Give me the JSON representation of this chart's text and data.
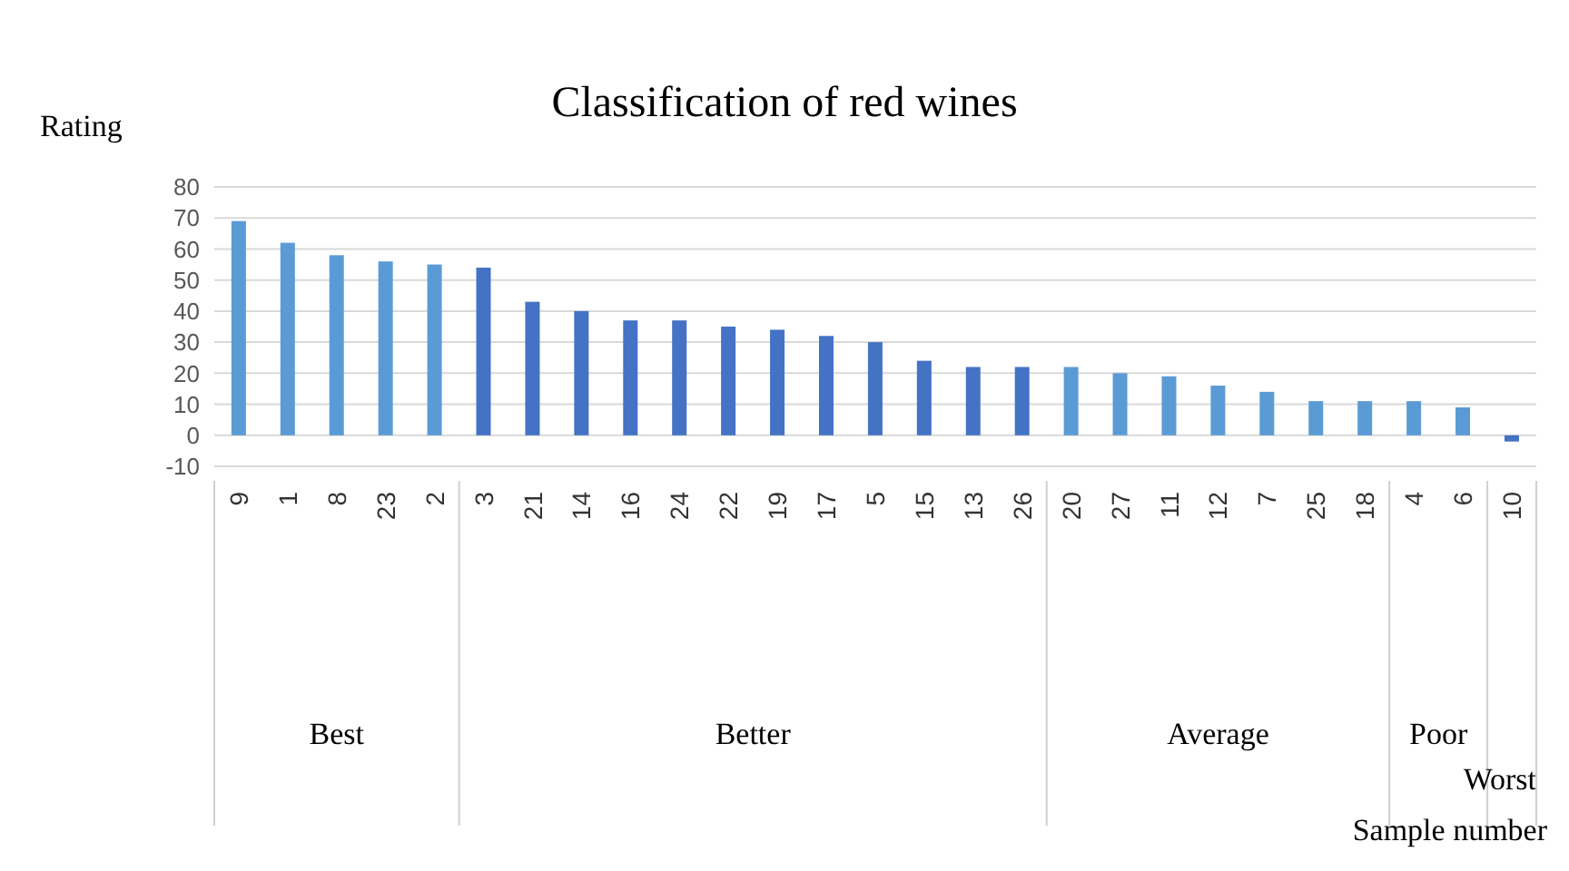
{
  "chart_data": {
    "type": "bar",
    "title": "Classification of red wines",
    "ylabel": "Rating",
    "categories": [
      "9",
      "1",
      "8",
      "23",
      "2",
      "3",
      "21",
      "14",
      "16",
      "24",
      "22",
      "19",
      "17",
      "5",
      "15",
      "13",
      "26",
      "20",
      "27",
      "11",
      "12",
      "7",
      "25",
      "18",
      "4",
      "6",
      "10"
    ],
    "series": [
      {
        "color": "#5b9bd5",
        "values": [
          69,
          62,
          58,
          56,
          55,
          null,
          null,
          null,
          null,
          null,
          null,
          null,
          null,
          null,
          null,
          null,
          null,
          null,
          null,
          null,
          null,
          null,
          null,
          null,
          null,
          null,
          null
        ]
      },
      {
        "color": "#4472c4",
        "values": [
          null,
          null,
          null,
          null,
          null,
          54,
          43,
          40,
          37,
          37,
          35,
          34,
          32,
          30,
          24,
          22,
          22,
          null,
          null,
          null,
          null,
          null,
          null,
          null,
          null,
          null,
          null
        ]
      },
      {
        "color": "#5b9bd5",
        "values": [
          null,
          null,
          null,
          null,
          null,
          null,
          null,
          null,
          null,
          null,
          null,
          null,
          null,
          null,
          null,
          null,
          null,
          22,
          20,
          19,
          16,
          14,
          11,
          11,
          null,
          null,
          null
        ]
      },
      {
        "color": "#5b9bd5",
        "values": [
          null,
          null,
          null,
          null,
          null,
          null,
          null,
          null,
          null,
          null,
          null,
          null,
          null,
          null,
          null,
          null,
          null,
          null,
          null,
          null,
          null,
          null,
          null,
          null,
          11,
          9,
          null
        ]
      },
      {
        "color": "#4472c4",
        "values": [
          null,
          null,
          null,
          null,
          null,
          null,
          null,
          null,
          null,
          null,
          null,
          null,
          null,
          null,
          null,
          null,
          null,
          null,
          null,
          null,
          null,
          null,
          null,
          null,
          null,
          null,
          -2
        ]
      }
    ],
    "annotations": [
      "Best",
      "Better",
      "Average",
      "Poor",
      "Worst",
      "Sample number"
    ],
    "ylim": [
      -10,
      80
    ],
    "yticks": [
      -10,
      0,
      10,
      20,
      30,
      40,
      50,
      60,
      70,
      80
    ],
    "grid": "y",
    "legend": false
  }
}
